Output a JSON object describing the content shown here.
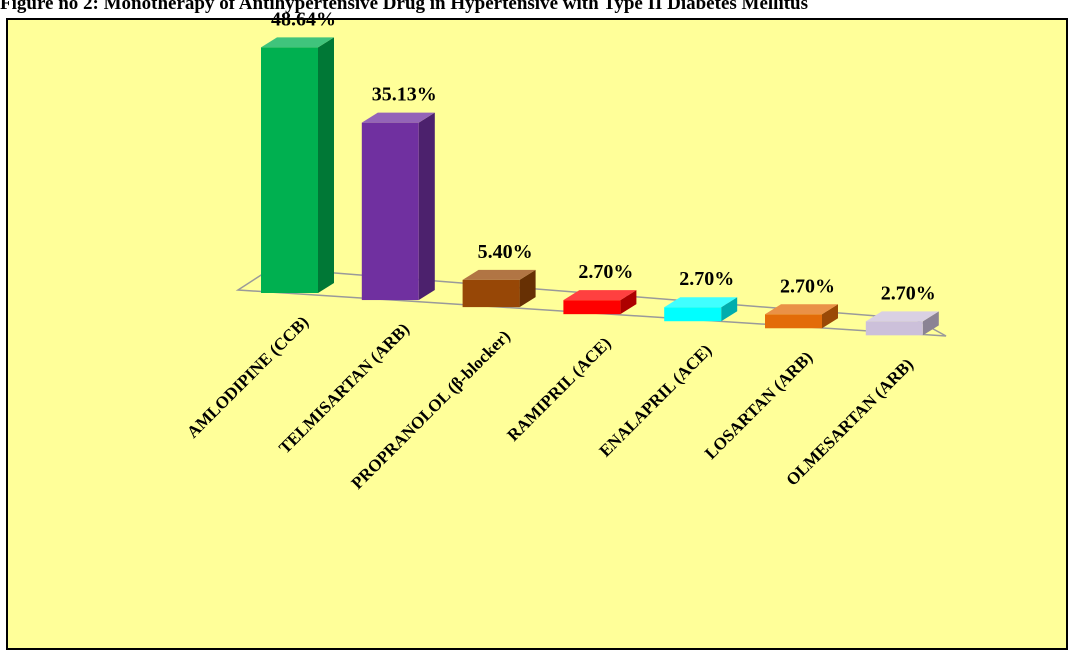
{
  "caption": "Figure no 2: Monotherapy of Antihypertensive Drug in Hypertensive with Type II Diabetes Mellitus",
  "chart_data": {
    "type": "bar",
    "style": "3d",
    "title": "",
    "xlabel": "",
    "ylabel": "",
    "grid": false,
    "legend": "none",
    "categories": [
      "AMLODIPINE (CCB)",
      "TELMISARTAN (ARB)",
      "PROPRANOLOL (β-blocker)",
      "RAMIPRIL (ACE)",
      "ENALAPRIL (ACE)",
      "LOSARTAN (ARB)",
      "OLMESARTAN (ARB)"
    ],
    "values": [
      48.64,
      35.13,
      5.4,
      2.7,
      2.7,
      2.7,
      2.7
    ],
    "value_labels": [
      "48.64%",
      "35.13%",
      "5.40%",
      "2.70%",
      "2.70%",
      "2.70%",
      "2.70%"
    ],
    "colors": [
      "#00b050",
      "#7030a0",
      "#974706",
      "#ff0000",
      "#00ffff",
      "#e36c09",
      "#ccc0da"
    ]
  }
}
